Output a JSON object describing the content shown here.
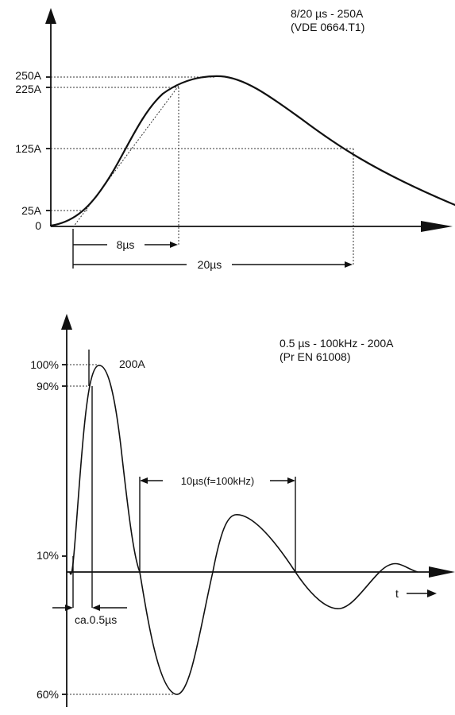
{
  "top_graph": {
    "title_line1": "8/20 µs - 250A",
    "title_line2": "(VDE 0664.T1)",
    "y_labels": {
      "peak": "250A",
      "p90": "225A",
      "half": "125A",
      "p10": "25A",
      "zero": "0"
    },
    "time_labels": {
      "rise": "8µs",
      "half_width": "20µs"
    }
  },
  "bottom_graph": {
    "title_line1": "0.5 µs - 100kHz - 200A",
    "title_line2": "(Pr EN 61008)",
    "y_labels": {
      "p100": "100%",
      "p90": "90%",
      "p10": "10%",
      "p60": "60%"
    },
    "peak_label": "200A",
    "period_label": "10µs(f=100kHz)",
    "rise_label": "ca.0.5µs",
    "time_axis_label": "t"
  }
}
